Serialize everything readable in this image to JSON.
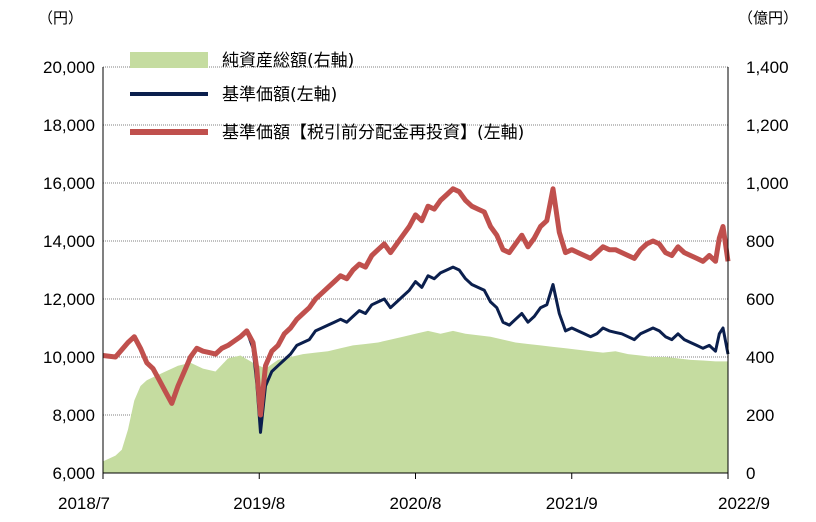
{
  "chart_data": {
    "type": "line",
    "left_unit": "（円）",
    "right_unit": "（億円）",
    "x_tick_labels": [
      "2018/7",
      "2019/8",
      "2020/8",
      "2021/9",
      "2022/9"
    ],
    "y_left": {
      "min": 6000,
      "max": 20000,
      "ticks": [
        "6,000",
        "8,000",
        "10,000",
        "12,000",
        "14,000",
        "16,000",
        "18,000",
        "20,000"
      ]
    },
    "y_right": {
      "min": 0,
      "max": 1400,
      "ticks": [
        "0",
        "200",
        "400",
        "600",
        "800",
        "1,000",
        "1,200",
        "1,400"
      ]
    },
    "grid": "horizontal",
    "legend_position": "top-left",
    "colors": {
      "assets": "#c5dca0",
      "nav": "#0b1f4d",
      "nav_reinvest": "#c0504d",
      "grid": "#808080"
    },
    "series": [
      {
        "name": "純資産総額(右軸)",
        "kind": "area",
        "axis": "right",
        "x": [
          0,
          1.0,
          1.5,
          2.0,
          2.5,
          3.0,
          3.5,
          4.0,
          4.5,
          5.0,
          5.5,
          6.0,
          7,
          8,
          9,
          10,
          11,
          12,
          13,
          14,
          15,
          16,
          17,
          18,
          19,
          20,
          21,
          22,
          23,
          24,
          25,
          26,
          27,
          28,
          29,
          30,
          31,
          32,
          33,
          34,
          35,
          36,
          37,
          38,
          39,
          40,
          41,
          42,
          43,
          44,
          45,
          46,
          47,
          48,
          49,
          50
        ],
        "values": [
          40,
          60,
          80,
          150,
          250,
          300,
          320,
          330,
          340,
          350,
          360,
          370,
          380,
          360,
          350,
          395,
          405,
          380,
          360,
          390,
          400,
          410,
          415,
          420,
          430,
          440,
          445,
          450,
          460,
          470,
          480,
          490,
          480,
          490,
          480,
          475,
          470,
          460,
          450,
          445,
          440,
          435,
          430,
          425,
          420,
          415,
          420,
          410,
          405,
          400,
          400,
          395,
          390,
          388,
          385,
          385
        ]
      },
      {
        "name": "基準価額(左軸)",
        "kind": "line",
        "axis": "left",
        "x": [
          0,
          1,
          2,
          2.5,
          3,
          3.5,
          4,
          4.5,
          5,
          5.5,
          6,
          6.5,
          7,
          7.5,
          8,
          8.5,
          9,
          9.5,
          10,
          10.5,
          11,
          11.5,
          12,
          12.3,
          12.6,
          13,
          13.5,
          14,
          14.5,
          15,
          15.5,
          16,
          16.5,
          17,
          17.5,
          18,
          18.5,
          19,
          19.5,
          20,
          20.5,
          21,
          21.5,
          22,
          22.5,
          23,
          23.5,
          24,
          24.5,
          25,
          25.5,
          26,
          26.5,
          27,
          27.5,
          28,
          28.5,
          29,
          29.5,
          30,
          30.5,
          31,
          31.5,
          32,
          32.5,
          33,
          33.5,
          34,
          34.5,
          35,
          35.5,
          36,
          36.5,
          37,
          37.5,
          38,
          38.5,
          39,
          39.5,
          40,
          40.5,
          41,
          41.5,
          42,
          42.5,
          43,
          43.5,
          44,
          44.5,
          45,
          45.5,
          46,
          46.5,
          47,
          47.5,
          48,
          48.5,
          49,
          49.3,
          49.6,
          50
        ],
        "values": [
          10050,
          10000,
          10500,
          10700,
          10300,
          9800,
          9600,
          9200,
          8800,
          8400,
          9000,
          9500,
          10000,
          10300,
          10200,
          10150,
          10100,
          10300,
          10400,
          10550,
          10700,
          10900,
          10300,
          9100,
          7400,
          9000,
          9500,
          9700,
          9900,
          10100,
          10400,
          10500,
          10600,
          10900,
          11000,
          11100,
          11200,
          11300,
          11200,
          11400,
          11600,
          11500,
          11800,
          11900,
          12000,
          11700,
          11900,
          12100,
          12300,
          12600,
          12400,
          12800,
          12700,
          12900,
          13000,
          13100,
          13000,
          12700,
          12500,
          12400,
          12300,
          11900,
          11700,
          11200,
          11100,
          11300,
          11500,
          11200,
          11400,
          11700,
          11800,
          12500,
          11500,
          10900,
          11000,
          10900,
          10800,
          10700,
          10800,
          11000,
          10900,
          10850,
          10800,
          10700,
          10600,
          10800,
          10900,
          11000,
          10900,
          10700,
          10600,
          10800,
          10600,
          10500,
          10400,
          10300,
          10400,
          10200,
          10800,
          11000,
          10100
        ]
      },
      {
        "name": "基準価額【税引前分配金再投資】(左軸)",
        "kind": "line",
        "axis": "left",
        "x": [
          0,
          1,
          2,
          2.5,
          3,
          3.5,
          4,
          4.5,
          5,
          5.5,
          6,
          6.5,
          7,
          7.5,
          8,
          8.5,
          9,
          9.5,
          10,
          10.5,
          11,
          11.5,
          12,
          12.3,
          12.6,
          13,
          13.5,
          14,
          14.5,
          15,
          15.5,
          16,
          16.5,
          17,
          17.5,
          18,
          18.5,
          19,
          19.5,
          20,
          20.5,
          21,
          21.5,
          22,
          22.5,
          23,
          23.5,
          24,
          24.5,
          25,
          25.5,
          26,
          26.5,
          27,
          27.5,
          28,
          28.5,
          29,
          29.5,
          30,
          30.5,
          31,
          31.5,
          32,
          32.5,
          33,
          33.5,
          34,
          34.5,
          35,
          35.5,
          36,
          36.5,
          37,
          37.5,
          38,
          38.5,
          39,
          39.5,
          40,
          40.5,
          41,
          41.5,
          42,
          42.5,
          43,
          43.5,
          44,
          44.5,
          45,
          45.5,
          46,
          46.5,
          47,
          47.5,
          48,
          48.5,
          49,
          49.3,
          49.6,
          50
        ],
        "values": [
          10050,
          10000,
          10500,
          10700,
          10300,
          9800,
          9600,
          9200,
          8800,
          8400,
          9000,
          9500,
          10000,
          10300,
          10200,
          10150,
          10100,
          10300,
          10400,
          10550,
          10700,
          10900,
          10500,
          9600,
          8000,
          9700,
          10200,
          10400,
          10800,
          11000,
          11300,
          11500,
          11700,
          12000,
          12200,
          12400,
          12600,
          12800,
          12700,
          13000,
          13200,
          13100,
          13500,
          13700,
          13900,
          13600,
          13900,
          14200,
          14500,
          14900,
          14700,
          15200,
          15100,
          15400,
          15600,
          15800,
          15700,
          15400,
          15200,
          15100,
          15000,
          14500,
          14200,
          13700,
          13600,
          13900,
          14200,
          13800,
          14100,
          14500,
          14700,
          15800,
          14300,
          13600,
          13700,
          13600,
          13500,
          13400,
          13600,
          13800,
          13700,
          13700,
          13600,
          13500,
          13400,
          13700,
          13900,
          14000,
          13900,
          13600,
          13500,
          13800,
          13600,
          13500,
          13400,
          13300,
          13500,
          13300,
          14100,
          14500,
          13300
        ]
      }
    ]
  }
}
